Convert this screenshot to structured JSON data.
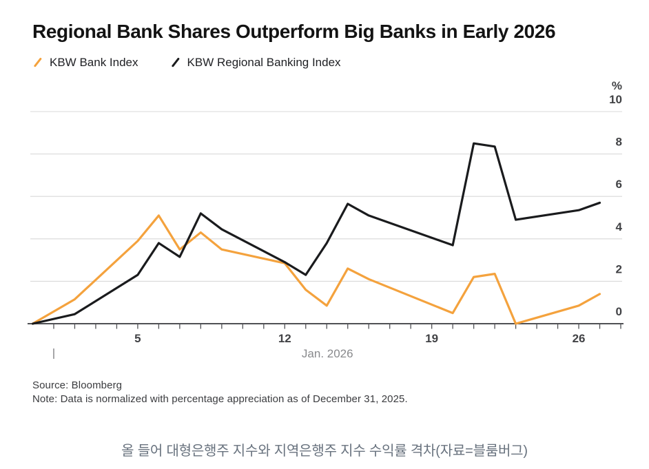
{
  "header": {
    "title": "Regional Bank Shares Outperform Big Banks in Early 2026",
    "legend": [
      {
        "label": "KBW Bank Index",
        "color": "#f4a23d",
        "swatch_icon": "slash-line-icon"
      },
      {
        "label": "KBW Regional Banking Index",
        "color": "#1a1b1d",
        "swatch_icon": "slash-line-icon"
      }
    ]
  },
  "footer": {
    "source": "Source: Bloomberg",
    "note": "Note: Data is normalized with percentage appreciation as of December 31, 2025."
  },
  "caption": "올 들어 대형은행주 지수와 지역은행주 지수 수익률 격차(자료=블룸버그)",
  "chart_data": {
    "type": "line",
    "title": "Regional Bank Shares Outperform Big Banks in Early 2026",
    "unit_label": "%",
    "xlabel": "Jan. 2026",
    "x_dates": [
      "Dec 31",
      "Jan 2",
      "Jan 5",
      "Jan 6",
      "Jan 7",
      "Jan 8",
      "Jan 9",
      "Jan 12",
      "Jan 13",
      "Jan 14",
      "Jan 15",
      "Jan 16",
      "Jan 20",
      "Jan 21",
      "Jan 22",
      "Jan 23",
      "Jan 26",
      "Jan 27"
    ],
    "x_days": [
      0,
      2,
      5,
      6,
      7,
      8,
      9,
      12,
      13,
      14,
      15,
      16,
      20,
      21,
      22,
      23,
      26,
      27
    ],
    "series": [
      {
        "name": "KBW Bank Index",
        "color": "#f4a23d",
        "values": [
          0,
          1.15,
          3.9,
          5.1,
          3.5,
          4.3,
          3.5,
          2.85,
          1.6,
          0.85,
          2.6,
          2.1,
          0.5,
          2.2,
          2.35,
          0,
          0.85,
          1.4
        ]
      },
      {
        "name": "KBW Regional Banking Index",
        "color": "#1a1b1d",
        "values": [
          0,
          0.45,
          2.3,
          3.8,
          3.15,
          5.2,
          4.45,
          2.9,
          2.3,
          3.8,
          5.65,
          5.1,
          3.7,
          8.5,
          8.35,
          4.9,
          5.35,
          5.7
        ]
      }
    ],
    "ylim": [
      0,
      10
    ],
    "xlim_days": [
      0,
      28.2
    ],
    "y_ticks": [
      0,
      2,
      4,
      6,
      8,
      10
    ],
    "x_major_tick_days": [
      5,
      12,
      19,
      26
    ],
    "x_minor_tick_days": [
      1,
      2,
      3,
      4,
      5,
      6,
      7,
      8,
      9,
      10,
      11,
      12,
      13,
      14,
      15,
      16,
      17,
      18,
      19,
      20,
      21,
      22,
      23,
      24,
      25,
      26,
      27,
      28
    ],
    "year_start_marker_day": 1,
    "grid": "horizontal-only",
    "legend_position": "top-left",
    "colors": {
      "gridline": "#d9d9d9",
      "axis": "#4f5054",
      "tick_label": "#414245",
      "month_label": "#88898c"
    }
  }
}
